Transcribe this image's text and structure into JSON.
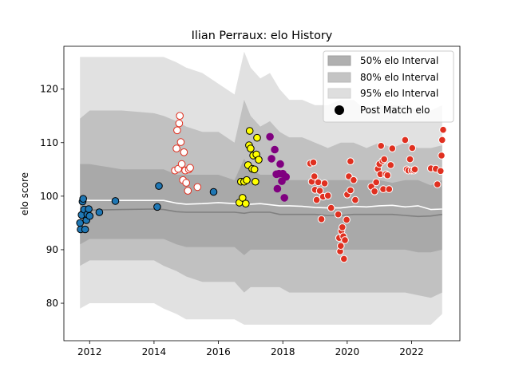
{
  "chart_data": {
    "type": "scatter",
    "title": "Ilian Perraux: elo History",
    "xlabel": "",
    "ylabel": "elo score",
    "xlim": [
      2011.2,
      2023.5
    ],
    "ylim": [
      73,
      128
    ],
    "x_ticks": [
      2012,
      2014,
      2016,
      2018,
      2020,
      2022
    ],
    "x_tick_labels": [
      "2012",
      "2014",
      "2016",
      "2018",
      "2020",
      "2022"
    ],
    "y_ticks": [
      80,
      90,
      100,
      110,
      120
    ],
    "y_tick_labels": [
      "80",
      "90",
      "100",
      "110",
      "120"
    ],
    "grid": false,
    "legend_position": "top-right",
    "legend": [
      {
        "label": "50% elo Interval",
        "kind": "band50"
      },
      {
        "label": "80% elo Interval",
        "kind": "band80"
      },
      {
        "label": "95% elo Interval",
        "kind": "band95"
      },
      {
        "label": "Post Match elo",
        "kind": "marker"
      }
    ],
    "colors": {
      "band50": "#7f7f7f",
      "band80": "#a8a8a8",
      "band95": "#c8c8c8",
      "mean_line": "#ffffff",
      "median_line": "#808080"
    },
    "bands": {
      "x": [
        2011.7,
        2012.0,
        2013.0,
        2014.0,
        2014.3,
        2014.7,
        2015.0,
        2015.5,
        2016.0,
        2016.5,
        2016.8,
        2017.0,
        2017.3,
        2017.6,
        2017.9,
        2018.2,
        2018.6,
        2019.0,
        2019.4,
        2019.8,
        2020.2,
        2020.6,
        2021.0,
        2021.4,
        2021.8,
        2022.2,
        2022.6,
        2022.95
      ],
      "p95_hi": [
        126,
        126,
        126,
        126,
        126,
        125,
        124,
        123,
        121,
        119,
        127,
        124,
        122,
        123,
        120,
        118,
        118,
        117,
        117,
        118,
        118,
        116,
        117,
        117,
        117,
        116,
        116,
        117
      ],
      "p80_hi": [
        114.5,
        116,
        116,
        115.5,
        115,
        114,
        113,
        112,
        112,
        110,
        118,
        115,
        113,
        114,
        112,
        111,
        111,
        110,
        109,
        110,
        110,
        109,
        110,
        109,
        110,
        109,
        109,
        109.5
      ],
      "p50_hi": [
        106,
        106,
        105,
        105,
        105,
        104,
        104,
        104,
        104,
        103,
        107,
        105,
        104,
        104,
        104,
        103,
        103,
        103,
        103,
        103,
        103,
        103,
        103,
        102.5,
        103,
        103,
        102,
        103
      ],
      "mean": [
        99.3,
        99.2,
        99.2,
        99.2,
        99.2,
        98.7,
        98.5,
        98.6,
        98.8,
        98.6,
        98.5,
        98.5,
        98.6,
        98.4,
        98.2,
        98.2,
        98.1,
        97.9,
        97.8,
        97.8,
        98.1,
        98.0,
        98.2,
        98.3,
        98.0,
        98.2,
        97.5,
        97.6
      ],
      "median": [
        97.2,
        97.4,
        97.5,
        97.6,
        97.5,
        97.1,
        97.0,
        97.0,
        97.0,
        97.0,
        96.8,
        97.0,
        97.0,
        97.0,
        96.6,
        96.6,
        96.6,
        96.6,
        96.4,
        96.4,
        96.6,
        96.6,
        96.6,
        96.6,
        96.4,
        96.2,
        96.3,
        96.6
      ],
      "p50_lo": [
        91,
        92,
        92,
        92,
        92,
        91,
        90.5,
        90.5,
        90.5,
        90.5,
        89,
        90,
        90,
        90,
        90,
        90,
        90,
        90,
        90,
        90,
        90,
        90,
        90,
        90,
        90,
        89.5,
        89.5,
        90
      ],
      "p80_lo": [
        87,
        88,
        88,
        88,
        87,
        86,
        85,
        84,
        84,
        84,
        82,
        83,
        83,
        83,
        83,
        82,
        82,
        82,
        82,
        82,
        82,
        82,
        82,
        82,
        82,
        81.5,
        81,
        82
      ],
      "p95_lo": [
        79,
        80,
        80,
        80,
        79,
        78,
        77,
        77,
        77,
        77,
        76,
        76,
        76,
        76,
        76,
        76,
        76,
        76,
        76,
        76,
        76,
        76,
        76,
        76,
        76,
        76,
        76,
        78
      ]
    },
    "series": [
      {
        "color": "#1f77b4",
        "edge": "#000000",
        "points": [
          [
            2011.7,
            95.0
          ],
          [
            2011.72,
            93.8
          ],
          [
            2011.75,
            96.5
          ],
          [
            2011.78,
            99.0
          ],
          [
            2011.8,
            99.5
          ],
          [
            2011.83,
            97.5
          ],
          [
            2011.86,
            93.8
          ],
          [
            2011.9,
            95.5
          ],
          [
            2011.93,
            96.6
          ],
          [
            2011.97,
            97.6
          ],
          [
            2012.0,
            96.3
          ],
          [
            2012.3,
            97.0
          ],
          [
            2012.8,
            99.1
          ],
          [
            2014.1,
            98.0
          ],
          [
            2014.15,
            101.9
          ],
          [
            2015.85,
            100.8
          ]
        ]
      },
      {
        "color": "#ffffff",
        "edge": "#e03020",
        "points": [
          [
            2014.65,
            104.8
          ],
          [
            2014.7,
            108.9
          ],
          [
            2014.72,
            112.3
          ],
          [
            2014.75,
            105.1
          ],
          [
            2014.78,
            113.6
          ],
          [
            2014.8,
            115.0
          ],
          [
            2014.83,
            110.1
          ],
          [
            2014.86,
            106.0
          ],
          [
            2014.9,
            103.0
          ],
          [
            2014.93,
            108.2
          ],
          [
            2014.97,
            104.8
          ],
          [
            2015.0,
            102.5
          ],
          [
            2015.05,
            101.0
          ],
          [
            2015.08,
            105.0
          ],
          [
            2015.12,
            105.3
          ],
          [
            2015.35,
            101.7
          ]
        ]
      },
      {
        "color": "#ffff00",
        "edge": "#000000",
        "points": [
          [
            2016.65,
            98.8
          ],
          [
            2016.7,
            102.7
          ],
          [
            2016.75,
            99.7
          ],
          [
            2016.8,
            102.7
          ],
          [
            2016.85,
            98.6
          ],
          [
            2016.88,
            103.0
          ],
          [
            2016.92,
            105.8
          ],
          [
            2016.95,
            109.5
          ],
          [
            2016.97,
            112.2
          ],
          [
            2017.0,
            108.9
          ],
          [
            2017.05,
            105.1
          ],
          [
            2017.08,
            107.6
          ],
          [
            2017.12,
            105.0
          ],
          [
            2017.15,
            102.7
          ],
          [
            2017.18,
            107.8
          ],
          [
            2017.2,
            110.9
          ],
          [
            2017.25,
            106.8
          ]
        ]
      },
      {
        "color": "#800080",
        "edge": "#800080",
        "points": [
          [
            2017.6,
            111.1
          ],
          [
            2017.65,
            107.0
          ],
          [
            2017.75,
            108.7
          ],
          [
            2017.8,
            104.1
          ],
          [
            2017.83,
            101.4
          ],
          [
            2017.88,
            104.2
          ],
          [
            2017.92,
            106.0
          ],
          [
            2017.97,
            102.8
          ],
          [
            2018.0,
            104.2
          ],
          [
            2018.05,
            99.7
          ],
          [
            2018.1,
            103.6
          ]
        ]
      },
      {
        "color": "#e03020",
        "edge": "#ffffff",
        "points": [
          [
            2018.85,
            106.1
          ],
          [
            2018.9,
            102.7
          ],
          [
            2018.95,
            106.3
          ],
          [
            2018.98,
            103.7
          ],
          [
            2019.0,
            101.2
          ],
          [
            2019.05,
            99.3
          ],
          [
            2019.1,
            102.6
          ],
          [
            2019.15,
            101.0
          ],
          [
            2019.2,
            95.7
          ],
          [
            2019.25,
            99.9
          ],
          [
            2019.3,
            102.4
          ],
          [
            2019.4,
            100.1
          ],
          [
            2019.5,
            97.8
          ],
          [
            2019.72,
            96.6
          ],
          [
            2019.75,
            92.2
          ],
          [
            2019.78,
            89.7
          ],
          [
            2019.8,
            90.7
          ],
          [
            2019.82,
            93.5
          ],
          [
            2019.85,
            94.2
          ],
          [
            2019.88,
            92.5
          ],
          [
            2019.9,
            88.3
          ],
          [
            2019.93,
            91.8
          ],
          [
            2019.98,
            95.6
          ],
          [
            2020.0,
            100.3
          ],
          [
            2020.05,
            103.7
          ],
          [
            2020.1,
            101.1
          ],
          [
            2020.1,
            106.5
          ],
          [
            2020.2,
            103.0
          ],
          [
            2020.25,
            99.3
          ],
          [
            2020.75,
            101.8
          ],
          [
            2020.85,
            100.9
          ],
          [
            2020.9,
            102.6
          ],
          [
            2020.95,
            105.1
          ],
          [
            2021.0,
            106.0
          ],
          [
            2021.03,
            104.1
          ],
          [
            2021.05,
            109.4
          ],
          [
            2021.1,
            106.6
          ],
          [
            2021.12,
            101.3
          ],
          [
            2021.15,
            106.9
          ],
          [
            2021.2,
            104.1
          ],
          [
            2021.25,
            103.9
          ],
          [
            2021.3,
            101.3
          ],
          [
            2021.35,
            105.8
          ],
          [
            2021.4,
            108.9
          ],
          [
            2021.8,
            110.5
          ],
          [
            2021.85,
            105.0
          ],
          [
            2021.9,
            104.8
          ],
          [
            2021.95,
            106.9
          ],
          [
            2022.0,
            104.8
          ],
          [
            2022.02,
            109.0
          ],
          [
            2022.07,
            104.8
          ],
          [
            2022.1,
            105.0
          ],
          [
            2022.6,
            105.2
          ],
          [
            2022.75,
            105.1
          ],
          [
            2022.8,
            102.2
          ],
          [
            2022.9,
            104.7
          ],
          [
            2022.93,
            107.6
          ],
          [
            2022.95,
            110.5
          ],
          [
            2022.98,
            112.4
          ]
        ]
      }
    ]
  }
}
